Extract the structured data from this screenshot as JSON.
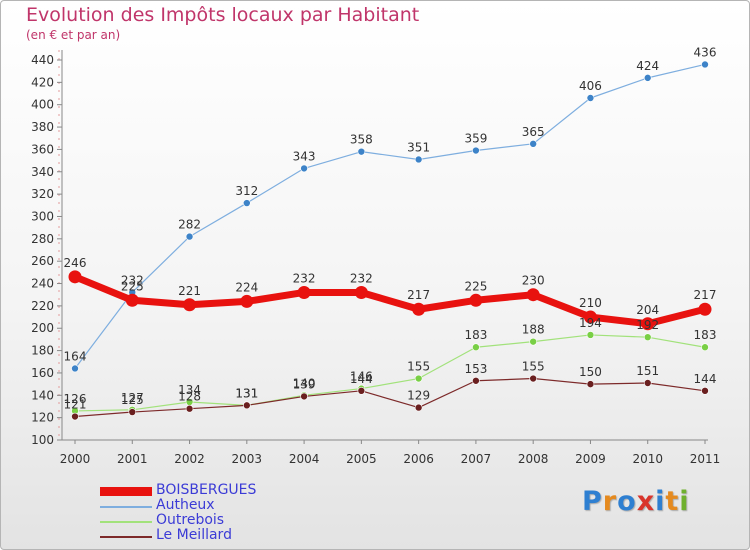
{
  "header": {
    "title": "Evolution des Impôts locaux par Habitant",
    "subtitle": "(en € et par an)"
  },
  "logo": {
    "text": "Proxiti",
    "letters": [
      "P",
      "r",
      "o",
      "x",
      "i",
      "t",
      "i"
    ],
    "colors": [
      "#2e7fd1",
      "#e58a1f",
      "#2e7fd1",
      "#d9342b",
      "#2e7fd1",
      "#e58a1f",
      "#6fb02e"
    ]
  },
  "chart_data": {
    "type": "line",
    "title": "Evolution des Impôts locaux par Habitant",
    "subtitle": "(en € et par an)",
    "xlabel": "",
    "ylabel": "",
    "x": [
      "2000",
      "2001",
      "2002",
      "2003",
      "2004",
      "2005",
      "2006",
      "2007",
      "2008",
      "2009",
      "2010",
      "2011"
    ],
    "ylim": [
      100,
      440
    ],
    "yticks": [
      100,
      120,
      140,
      160,
      180,
      200,
      220,
      240,
      260,
      280,
      300,
      320,
      340,
      360,
      380,
      400,
      420,
      440
    ],
    "grid": false,
    "legend_position": "bottom-left",
    "series": [
      {
        "name": "BOISBERGUES",
        "color": "#e8120f",
        "width": 7,
        "marker": 6.5,
        "values": [
          246,
          225,
          221,
          224,
          232,
          232,
          217,
          225,
          230,
          210,
          204,
          217
        ]
      },
      {
        "name": "Autheux",
        "color": "#7eaedf",
        "marker_color": "#3d83c8",
        "width": 1.2,
        "marker": 3.5,
        "values": [
          164,
          232,
          282,
          312,
          343,
          358,
          351,
          359,
          365,
          406,
          424,
          436
        ]
      },
      {
        "name": "Outrebois",
        "color": "#a2e27b",
        "marker_color": "#79cf45",
        "width": 1.2,
        "marker": 3.5,
        "values": [
          126,
          127,
          134,
          131,
          140,
          146,
          155,
          183,
          188,
          194,
          192,
          183
        ]
      },
      {
        "name": "Le Meillard",
        "color": "#7d2a2a",
        "marker_color": "#6a1f1f",
        "width": 1.2,
        "marker": 3.5,
        "values": [
          121,
          125,
          128,
          131,
          139,
          144,
          129,
          153,
          155,
          150,
          151,
          144
        ]
      }
    ]
  }
}
